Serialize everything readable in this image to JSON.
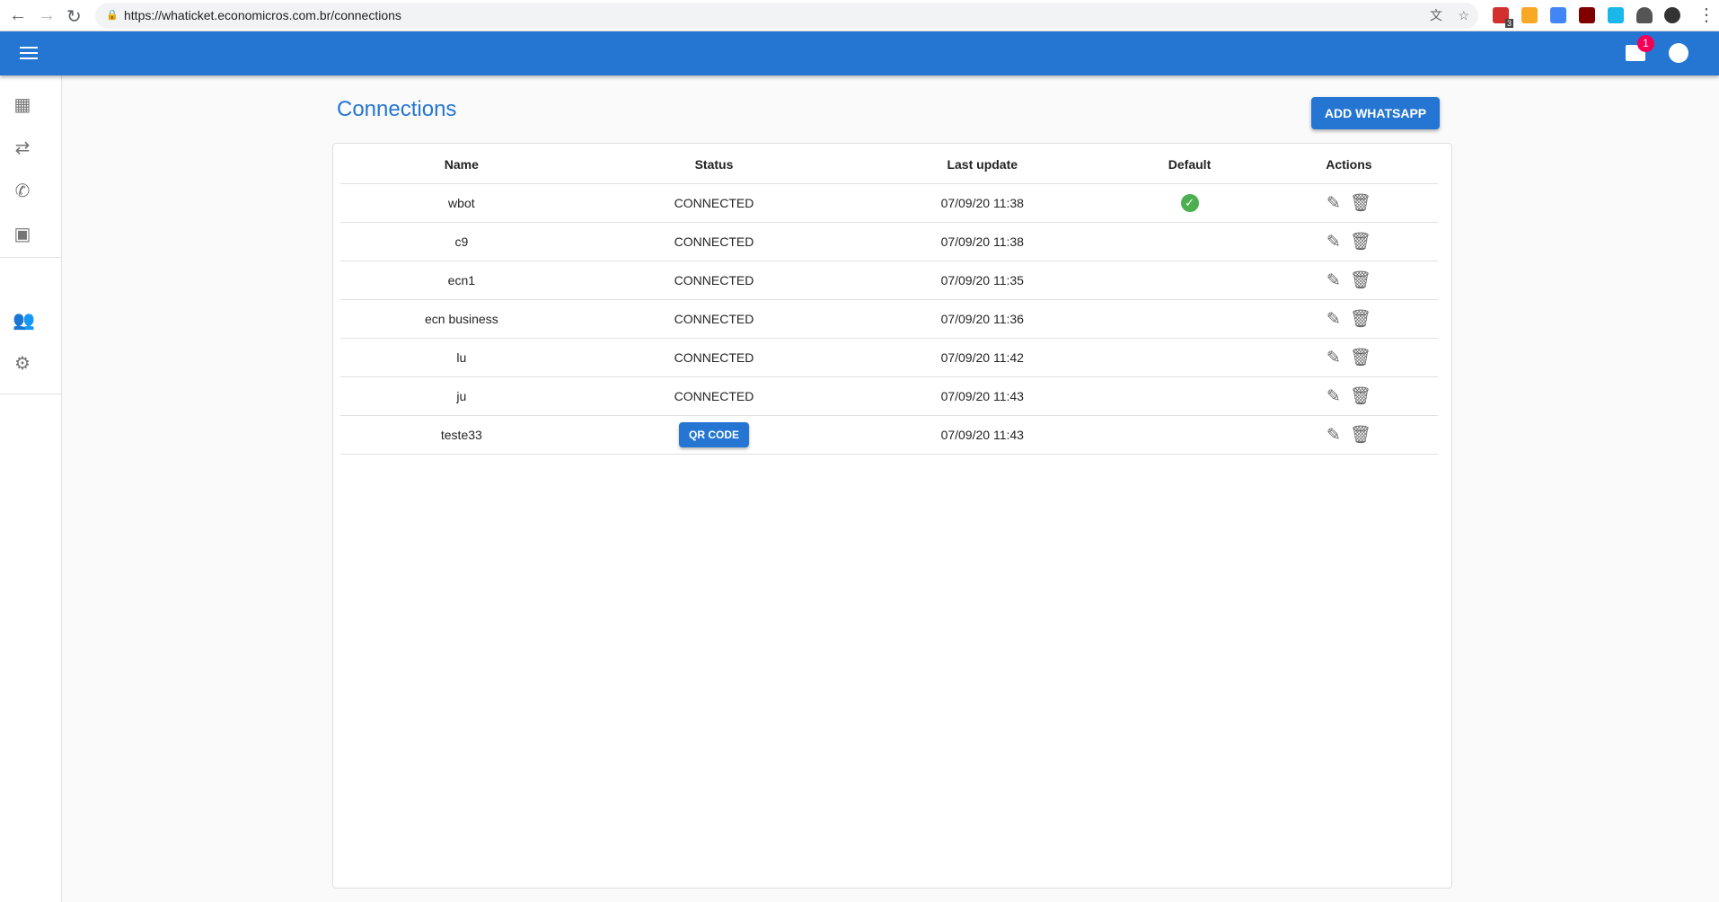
{
  "browser": {
    "url": "https://whaticket.economicros.com.br/connections",
    "extension_badge": "3"
  },
  "appbar": {
    "notification_count": "1"
  },
  "sidebar": {
    "items": [
      "dashboard",
      "tickets",
      "connections",
      "contacts",
      "users",
      "settings"
    ]
  },
  "page": {
    "title": "Connections",
    "add_button": "ADD WHATSAPP"
  },
  "table": {
    "headers": [
      "Name",
      "Status",
      "Last update",
      "Default",
      "Actions"
    ],
    "rows": [
      {
        "name": "wbot",
        "status": "CONNECTED",
        "updated": "07/09/20 11:38",
        "default": true
      },
      {
        "name": "c9",
        "status": "CONNECTED",
        "updated": "07/09/20 11:38",
        "default": false
      },
      {
        "name": "ecn1",
        "status": "CONNECTED",
        "updated": "07/09/20 11:35",
        "default": false
      },
      {
        "name": "ecn business",
        "status": "CONNECTED",
        "updated": "07/09/20 11:36",
        "default": false
      },
      {
        "name": "lu",
        "status": "CONNECTED",
        "updated": "07/09/20 11:42",
        "default": false
      },
      {
        "name": "ju",
        "status": "CONNECTED",
        "updated": "07/09/20 11:43",
        "default": false
      },
      {
        "name": "teste33",
        "status": "QR CODE",
        "updated": "07/09/20 11:43",
        "default": false
      }
    ]
  },
  "colors": {
    "primary": "#2576d2",
    "success": "#4caf50",
    "badge": "#f50057"
  }
}
